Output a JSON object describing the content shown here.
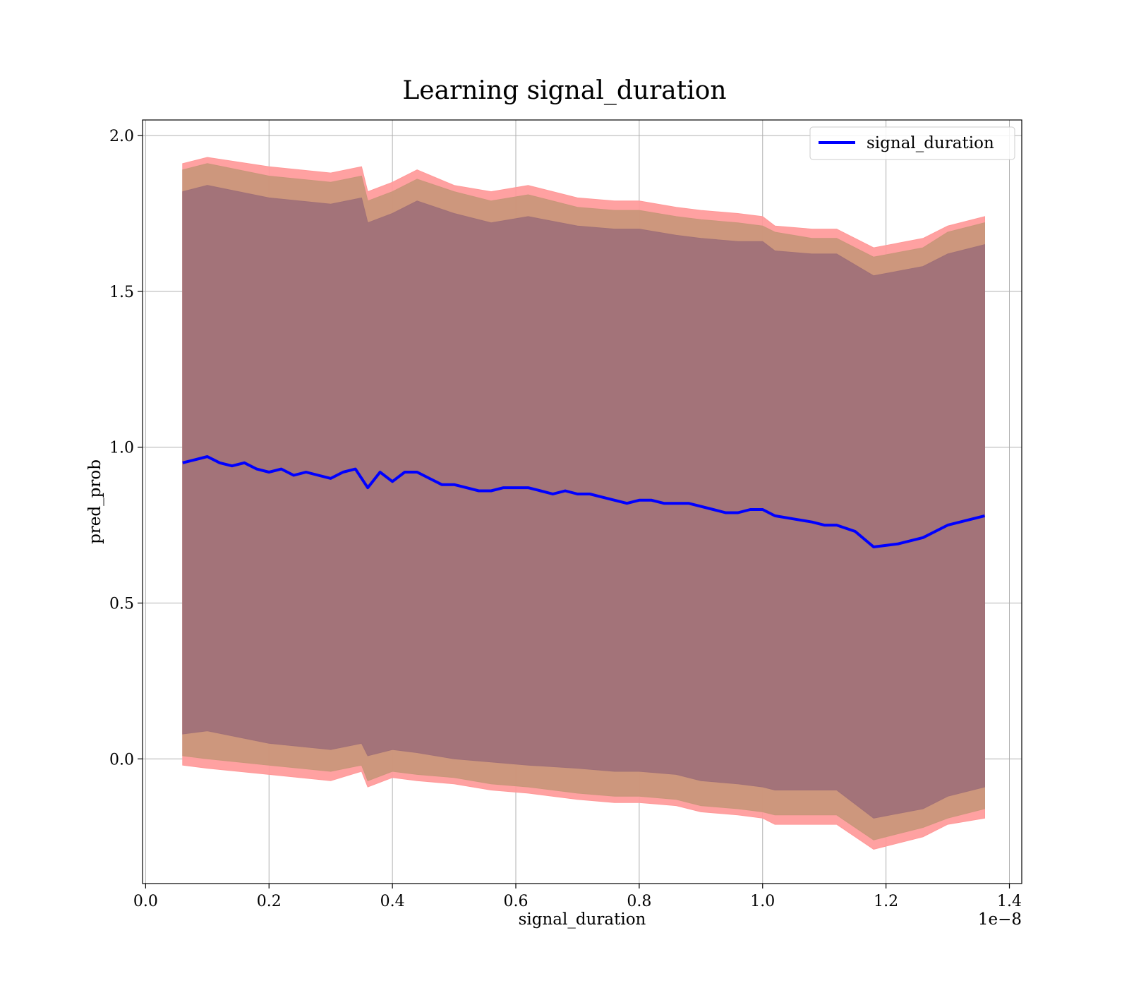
{
  "chart_data": {
    "type": "line",
    "title": "Learning signal_duration",
    "xlabel": "signal_duration",
    "ylabel": "pred_prob",
    "x_offset_label": "1e−8",
    "xlim": [
      -0.005,
      1.42
    ],
    "ylim": [
      -0.4,
      2.05
    ],
    "x_ticks": [
      "0.0",
      "0.2",
      "0.4",
      "0.6",
      "0.8",
      "1.0",
      "1.2",
      "1.4"
    ],
    "y_ticks": [
      "0.0",
      "0.5",
      "1.0",
      "1.5",
      "2.0"
    ],
    "grid": true,
    "legend": {
      "placement": "top-right",
      "entries": [
        "signal_duration"
      ]
    },
    "colors": {
      "line": "#0000ff",
      "band_outer": "#ff9999",
      "band_middle": "#c9967a",
      "band_inner": "#a07078"
    },
    "series": [
      {
        "name": "signal_duration",
        "x": [
          0.06,
          0.08,
          0.1,
          0.12,
          0.14,
          0.16,
          0.18,
          0.2,
          0.22,
          0.24,
          0.26,
          0.28,
          0.3,
          0.32,
          0.34,
          0.36,
          0.38,
          0.4,
          0.42,
          0.44,
          0.46,
          0.48,
          0.5,
          0.52,
          0.54,
          0.56,
          0.58,
          0.6,
          0.62,
          0.64,
          0.66,
          0.68,
          0.7,
          0.72,
          0.74,
          0.76,
          0.78,
          0.8,
          0.82,
          0.84,
          0.86,
          0.88,
          0.9,
          0.92,
          0.94,
          0.96,
          0.98,
          1.0,
          1.02,
          1.05,
          1.08,
          1.1,
          1.12,
          1.15,
          1.18,
          1.22,
          1.26,
          1.3,
          1.36
        ],
        "y": [
          0.95,
          0.96,
          0.97,
          0.95,
          0.94,
          0.95,
          0.93,
          0.92,
          0.93,
          0.91,
          0.92,
          0.91,
          0.9,
          0.92,
          0.93,
          0.87,
          0.92,
          0.89,
          0.92,
          0.92,
          0.9,
          0.88,
          0.88,
          0.87,
          0.86,
          0.86,
          0.87,
          0.87,
          0.87,
          0.86,
          0.85,
          0.86,
          0.85,
          0.85,
          0.84,
          0.83,
          0.82,
          0.83,
          0.83,
          0.82,
          0.82,
          0.82,
          0.81,
          0.8,
          0.79,
          0.79,
          0.8,
          0.8,
          0.78,
          0.77,
          0.76,
          0.75,
          0.75,
          0.73,
          0.68,
          0.69,
          0.71,
          0.75,
          0.78
        ]
      }
    ],
    "bands": [
      {
        "x": [
          0.06,
          0.1,
          0.2,
          0.3,
          0.35,
          0.36,
          0.4,
          0.44,
          0.5,
          0.56,
          0.62,
          0.7,
          0.76,
          0.8,
          0.86,
          0.9,
          0.96,
          1.0,
          1.02,
          1.08,
          1.12,
          1.18,
          1.26,
          1.3,
          1.36
        ],
        "upper": [
          1.91,
          1.93,
          1.9,
          1.88,
          1.9,
          1.82,
          1.85,
          1.89,
          1.84,
          1.82,
          1.84,
          1.8,
          1.79,
          1.79,
          1.77,
          1.76,
          1.75,
          1.74,
          1.71,
          1.7,
          1.7,
          1.64,
          1.67,
          1.71,
          1.74
        ],
        "lower": [
          -0.02,
          -0.03,
          -0.05,
          -0.07,
          -0.04,
          -0.09,
          -0.06,
          -0.07,
          -0.08,
          -0.1,
          -0.11,
          -0.13,
          -0.14,
          -0.14,
          -0.15,
          -0.17,
          -0.18,
          -0.19,
          -0.21,
          -0.21,
          -0.21,
          -0.29,
          -0.25,
          -0.21,
          -0.19
        ]
      },
      {
        "x": [
          0.06,
          0.1,
          0.2,
          0.3,
          0.35,
          0.36,
          0.4,
          0.44,
          0.5,
          0.56,
          0.62,
          0.7,
          0.76,
          0.8,
          0.86,
          0.9,
          0.96,
          1.0,
          1.02,
          1.08,
          1.12,
          1.18,
          1.26,
          1.3,
          1.36
        ],
        "upper": [
          1.89,
          1.91,
          1.87,
          1.85,
          1.87,
          1.79,
          1.82,
          1.86,
          1.82,
          1.79,
          1.81,
          1.77,
          1.76,
          1.76,
          1.74,
          1.73,
          1.72,
          1.71,
          1.69,
          1.67,
          1.67,
          1.61,
          1.64,
          1.69,
          1.72
        ],
        "lower": [
          0.01,
          0.0,
          -0.02,
          -0.04,
          -0.02,
          -0.07,
          -0.04,
          -0.05,
          -0.06,
          -0.08,
          -0.09,
          -0.11,
          -0.12,
          -0.12,
          -0.13,
          -0.15,
          -0.16,
          -0.17,
          -0.18,
          -0.18,
          -0.18,
          -0.26,
          -0.22,
          -0.19,
          -0.16
        ]
      },
      {
        "x": [
          0.06,
          0.1,
          0.2,
          0.3,
          0.35,
          0.36,
          0.4,
          0.44,
          0.5,
          0.56,
          0.62,
          0.7,
          0.76,
          0.8,
          0.86,
          0.9,
          0.96,
          1.0,
          1.02,
          1.08,
          1.12,
          1.18,
          1.26,
          1.3,
          1.36
        ],
        "upper": [
          1.82,
          1.84,
          1.8,
          1.78,
          1.8,
          1.72,
          1.75,
          1.79,
          1.75,
          1.72,
          1.74,
          1.71,
          1.7,
          1.7,
          1.68,
          1.67,
          1.66,
          1.66,
          1.63,
          1.62,
          1.62,
          1.55,
          1.58,
          1.62,
          1.65
        ],
        "lower": [
          0.08,
          0.09,
          0.05,
          0.03,
          0.05,
          0.01,
          0.03,
          0.02,
          0.0,
          -0.01,
          -0.02,
          -0.03,
          -0.04,
          -0.04,
          -0.05,
          -0.07,
          -0.08,
          -0.09,
          -0.1,
          -0.1,
          -0.1,
          -0.19,
          -0.16,
          -0.12,
          -0.09
        ]
      }
    ]
  }
}
